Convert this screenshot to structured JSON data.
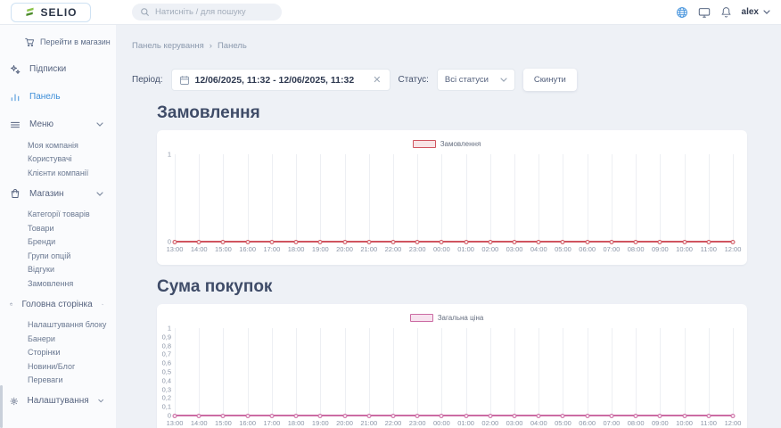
{
  "header": {
    "logo_text": "SELIO",
    "search_placeholder": "Натисніть / для пошуку",
    "user": "alex"
  },
  "breadcrumb": [
    "Панель керування",
    "Панель"
  ],
  "filters": {
    "period_label": "Період:",
    "period_value": "12/06/2025, 11:32 - 12/06/2025, 11:32",
    "status_label": "Статус:",
    "status_value": "Всі статуси",
    "reset_label": "Скинути"
  },
  "sidebar": {
    "items": [
      {
        "name": "go-to-store",
        "icon": "cart",
        "label": "Перейти в магазин",
        "type": "storelink"
      },
      {
        "name": "subscriptions",
        "icon": "sparkles",
        "label": "Підписки",
        "type": "top"
      },
      {
        "name": "dashboard",
        "icon": "bar-chart",
        "label": "Панель",
        "type": "top",
        "active": true
      },
      {
        "name": "menu",
        "icon": "hamburger",
        "label": "Меню",
        "type": "group",
        "children": [
          {
            "name": "my-company",
            "label": "Моя компанія"
          },
          {
            "name": "users",
            "label": "Користувачі"
          },
          {
            "name": "company-clients",
            "label": "Клієнти компанії"
          }
        ]
      },
      {
        "name": "store",
        "icon": "bag",
        "label": "Магазин",
        "type": "group",
        "children": [
          {
            "name": "product-categories",
            "label": "Категорії товарів"
          },
          {
            "name": "products",
            "label": "Товари"
          },
          {
            "name": "brands",
            "label": "Бренди"
          },
          {
            "name": "option-groups",
            "label": "Групи опцій"
          },
          {
            "name": "reviews",
            "label": "Відгуки"
          },
          {
            "name": "orders",
            "label": "Замовлення"
          }
        ]
      },
      {
        "name": "home-page",
        "icon": "briefcase",
        "label": "Головна сторінка",
        "type": "group",
        "children": [
          {
            "name": "block-settings",
            "label": "Налаштування блоку"
          },
          {
            "name": "banners",
            "label": "Банери"
          },
          {
            "name": "pages",
            "label": "Сторінки"
          },
          {
            "name": "news-blog",
            "label": "Новини/Блог"
          },
          {
            "name": "advantages",
            "label": "Переваги"
          }
        ]
      },
      {
        "name": "settings",
        "icon": "gear",
        "label": "Налаштування",
        "type": "group",
        "children": []
      }
    ]
  },
  "chart_data": [
    {
      "type": "line",
      "title": "Замовлення",
      "legend": "Замовлення",
      "line_color": "#d0545f",
      "legend_fill": "#f8e4e6",
      "legend_position": "top",
      "grid": true,
      "x": [
        "13:00",
        "14:00",
        "15:00",
        "16:00",
        "17:00",
        "18:00",
        "19:00",
        "20:00",
        "21:00",
        "22:00",
        "23:00",
        "00:00",
        "01:00",
        "02:00",
        "03:00",
        "04:00",
        "05:00",
        "06:00",
        "07:00",
        "08:00",
        "09:00",
        "10:00",
        "11:00",
        "12:00"
      ],
      "values": [
        0,
        0,
        0,
        0,
        0,
        0,
        0,
        0,
        0,
        0,
        0,
        0,
        0,
        0,
        0,
        0,
        0,
        0,
        0,
        0,
        0,
        0,
        0,
        0
      ],
      "y_ticks": [
        "1",
        "0"
      ],
      "ylim": [
        0,
        1
      ]
    },
    {
      "type": "line",
      "title": "Сума покупок",
      "legend": "Загальна ціна",
      "line_color": "#cb6ba3",
      "legend_fill": "#f7e3ef",
      "legend_position": "top",
      "grid": true,
      "x": [
        "13:00",
        "14:00",
        "15:00",
        "16:00",
        "17:00",
        "18:00",
        "19:00",
        "20:00",
        "21:00",
        "22:00",
        "23:00",
        "00:00",
        "01:00",
        "02:00",
        "03:00",
        "04:00",
        "05:00",
        "06:00",
        "07:00",
        "08:00",
        "09:00",
        "10:00",
        "11:00",
        "12:00"
      ],
      "values": [
        0,
        0,
        0,
        0,
        0,
        0,
        0,
        0,
        0,
        0,
        0,
        0,
        0,
        0,
        0,
        0,
        0,
        0,
        0,
        0,
        0,
        0,
        0,
        0
      ],
      "y_ticks": [
        "1",
        "0,9",
        "0,8",
        "0,7",
        "0,6",
        "0,5",
        "0,4",
        "0,3",
        "0,2",
        "0,1",
        "0"
      ],
      "ylim": [
        0,
        1
      ]
    }
  ]
}
